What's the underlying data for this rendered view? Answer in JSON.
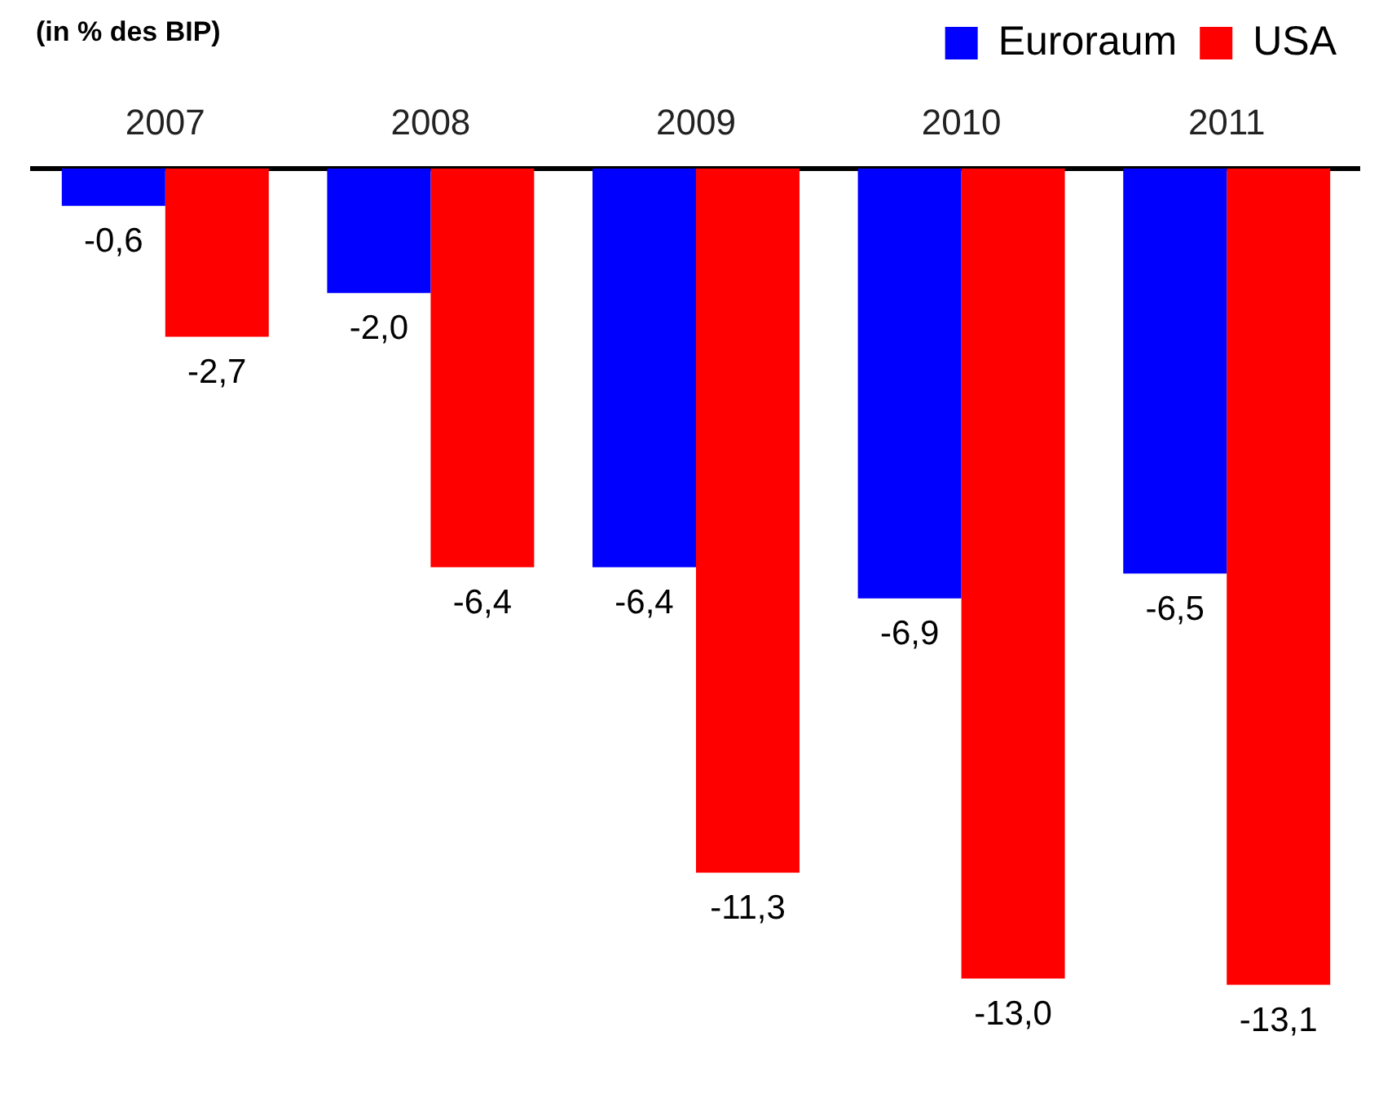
{
  "chart_data": {
    "type": "bar",
    "title": "(in % des BIP)",
    "categories": [
      "2007",
      "2008",
      "2009",
      "2010",
      "2011"
    ],
    "series": [
      {
        "name": "Euroraum",
        "color": "#0000ff",
        "values": [
          -0.6,
          -2.0,
          -6.4,
          -6.9,
          -6.5
        ],
        "value_labels": [
          "-0,6",
          "-2,0",
          "-6,4",
          "-6,9",
          "-6,5"
        ]
      },
      {
        "name": "USA",
        "color": "#ff0000",
        "values": [
          -2.7,
          -6.4,
          -11.3,
          -13.0,
          -13.1
        ],
        "value_labels": [
          "-2,7",
          "-6,4",
          "-11,3",
          "-13,0",
          "-13,1"
        ]
      }
    ],
    "legend": "top right",
    "grid": false
  }
}
